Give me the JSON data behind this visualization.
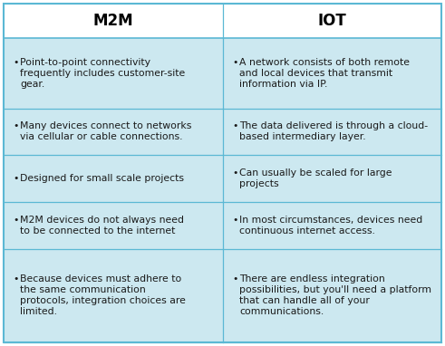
{
  "title_m2m": "M2M",
  "title_iot": "IOT",
  "header_bg": "#ffffff",
  "row_bg": "#cce8f0",
  "border_color": "#5bb8d4",
  "text_color": "#1a1a1a",
  "title_color": "#000000",
  "rows": [
    {
      "m2m": "Point-to-point connectivity\nfrequently includes customer-site\ngear.",
      "iot": "A network consists of both remote\nand local devices that transmit\ninformation via IP."
    },
    {
      "m2m": "Many devices connect to networks\nvia cellular or cable connections.",
      "iot": "The data delivered is through a cloud-\nbased intermediary layer."
    },
    {
      "m2m": "Designed for small scale projects",
      "iot": "Can usually be scaled for large\nprojects"
    },
    {
      "m2m": "M2M devices do not always need\nto be connected to the internet",
      "iot": "In most circumstances, devices need\ncontinuous internet access."
    },
    {
      "m2m": "Because devices must adhere to\nthe same communication\nprotocols, integration choices are\nlimited.",
      "iot": "There are endless integration\npossibilities, but you'll need a platform\nthat can handle all of your\ncommunications."
    }
  ],
  "fig_width": 4.91,
  "fig_height": 3.82,
  "dpi": 100,
  "row_line_counts": [
    3,
    2,
    2,
    2,
    4
  ],
  "font_size": 7.8,
  "bullet_size": 7.8,
  "header_font_size": 12
}
